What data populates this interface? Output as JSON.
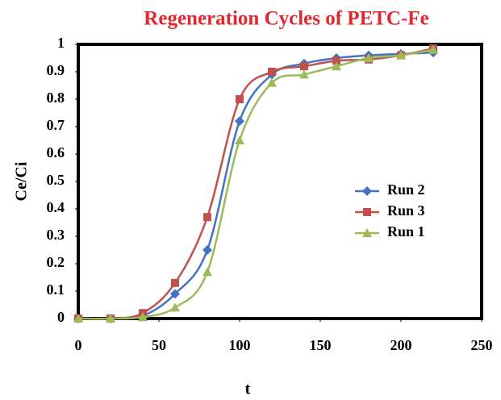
{
  "chart_data": {
    "type": "line",
    "title": "Regeneration Cycles of PETC-Fe",
    "x_label": "t",
    "y_label": "Ce/Ci",
    "x": [
      0,
      20,
      40,
      60,
      80,
      100,
      120,
      140,
      160,
      180,
      200,
      220
    ],
    "series": [
      {
        "name": "Run 2",
        "color": "#4472c4",
        "marker": "diamond",
        "values": [
          0,
          0,
          0.01,
          0.09,
          0.25,
          0.72,
          0.89,
          0.93,
          0.95,
          0.96,
          0.965,
          0.97
        ]
      },
      {
        "name": "Run 3",
        "color": "#c0504d",
        "marker": "square",
        "values": [
          0,
          0,
          0.02,
          0.13,
          0.37,
          0.8,
          0.9,
          0.92,
          0.94,
          0.945,
          0.96,
          0.985
        ]
      },
      {
        "name": "Run 1",
        "color": "#9bbb59",
        "marker": "triangle",
        "values": [
          0,
          0,
          0.005,
          0.04,
          0.17,
          0.65,
          0.86,
          0.89,
          0.92,
          0.95,
          0.96,
          0.98
        ]
      }
    ],
    "xlim": [
      0,
      250
    ],
    "xticks": [
      0,
      50,
      100,
      150,
      200,
      250
    ],
    "ylim": [
      0,
      1
    ],
    "yticks": [
      0,
      0.1,
      0.2,
      0.3,
      0.4,
      0.5,
      0.6,
      0.7,
      0.8,
      0.9,
      1
    ],
    "smooth": true,
    "legend": "right"
  }
}
